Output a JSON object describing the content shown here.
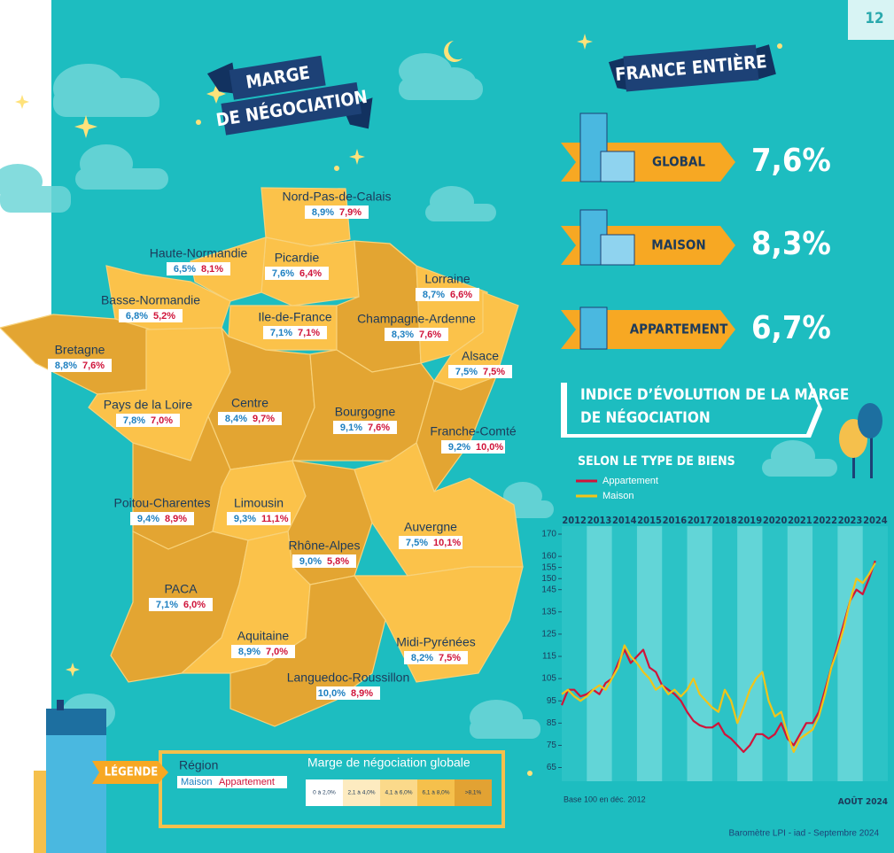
{
  "page_number": "12",
  "map_title": [
    "MARGE",
    "DE NÉGOCIATION"
  ],
  "regions": [
    {
      "name": "Nord-Pas-de-Calais",
      "maison": "8,9%",
      "appartement": "7,9%",
      "color": "#fbc24a"
    },
    {
      "name": "Picardie",
      "maison": "7,6%",
      "appartement": "6,4%",
      "color": "#fbc24a"
    },
    {
      "name": "Haute-Normandie",
      "maison": "6,5%",
      "appartement": "8,1%",
      "color": "#fbc24a"
    },
    {
      "name": "Basse-Normandie",
      "maison": "6,8%",
      "appartement": "5,2%",
      "color": "#fbc24a"
    },
    {
      "name": "Bretagne",
      "maison": "8,8%",
      "appartement": "7,6%",
      "color": "#e3a532"
    },
    {
      "name": "Pays de la Loire",
      "maison": "7,8%",
      "appartement": "7,0%",
      "color": "#fbc24a"
    },
    {
      "name": "Ile-de-France",
      "maison": "7,1%",
      "appartement": "7,1%",
      "color": "#fbc24a"
    },
    {
      "name": "Champagne-Ardenne",
      "maison": "8,3%",
      "appartement": "7,6%",
      "color": "#e3a532"
    },
    {
      "name": "Lorraine",
      "maison": "8,7%",
      "appartement": "6,6%",
      "color": "#fbc24a"
    },
    {
      "name": "Alsace",
      "maison": "7,5%",
      "appartement": "7,5%",
      "color": "#fbc24a"
    },
    {
      "name": "Centre",
      "maison": "8,4%",
      "appartement": "9,7%",
      "color": "#e3a532"
    },
    {
      "name": "Bourgogne",
      "maison": "9,1%",
      "appartement": "7,6%",
      "color": "#e3a532"
    },
    {
      "name": "Franche-Comté",
      "maison": "9,2%",
      "appartement": "10,0%",
      "color": "#e3a532"
    },
    {
      "name": "Poitou-Charentes",
      "maison": "9,4%",
      "appartement": "8,9%",
      "color": "#e3a532"
    },
    {
      "name": "Limousin",
      "maison": "9,3%",
      "appartement": "11,1%",
      "color": "#fbc24a"
    },
    {
      "name": "Auvergne",
      "maison": "7,5%",
      "appartement": "10,1%",
      "color": "#e3a532"
    },
    {
      "name": "Rhône-Alpes",
      "maison": "9,0%",
      "appartement": "5,8%",
      "color": "#fbc24a"
    },
    {
      "name": "PACA",
      "maison": "7,1%",
      "appartement": "6,0%",
      "color": "#fbc24a"
    },
    {
      "name": "Aquitaine",
      "maison": "8,9%",
      "appartement": "7,0%",
      "color": "#e3a532"
    },
    {
      "name": "Midi-Pyrénées",
      "maison": "8,2%",
      "appartement": "7,5%",
      "color": "#fbc24a"
    },
    {
      "name": "Languedoc-Roussillon",
      "maison": "10,0%",
      "appartement": "8,9%",
      "color": "#e3a532"
    }
  ],
  "france": {
    "title": "FRANCE ENTIÈRE",
    "rows": [
      {
        "label": "GLOBAL",
        "value": "7,6%"
      },
      {
        "label": "MAISON",
        "value": "8,3%"
      },
      {
        "label": "APPARTEMENT",
        "value": "6,7%"
      }
    ]
  },
  "legend": {
    "title": "LÉGENDE",
    "region": "Région",
    "maison": "Maison",
    "appartement": "Appartement",
    "scale_title": "Marge de négociation globale",
    "bins": [
      {
        "label": "0 à 2,0%",
        "color": "#ffffff"
      },
      {
        "label": "2,1 à 4,0%",
        "color": "#fdebc0"
      },
      {
        "label": "4,1 à 6,0%",
        "color": "#fbd98a"
      },
      {
        "label": "6,1 à 8,0%",
        "color": "#f5c04c"
      },
      {
        "label": ">8,1%",
        "color": "#e2a233"
      }
    ]
  },
  "chart_data": {
    "type": "line",
    "title": [
      "INDICE D’ÉVOLUTION DE LA MARGE",
      "DE NÉGOCIATION"
    ],
    "subtitle": "SELON LE TYPE DE BIENS",
    "x": [
      2012,
      2012.25,
      2012.5,
      2012.75,
      2013,
      2013.25,
      2013.5,
      2013.75,
      2014,
      2014.25,
      2014.5,
      2014.75,
      2015,
      2015.25,
      2015.5,
      2015.75,
      2016,
      2016.25,
      2016.5,
      2016.75,
      2017,
      2017.25,
      2017.5,
      2017.75,
      2018,
      2018.25,
      2018.5,
      2018.75,
      2019,
      2019.25,
      2019.5,
      2019.75,
      2020,
      2020.25,
      2020.5,
      2020.75,
      2021,
      2021.25,
      2021.5,
      2021.75,
      2022,
      2022.25,
      2022.5,
      2022.75,
      2023,
      2023.25,
      2023.5,
      2023.75,
      2024,
      2024.25,
      2024.5
    ],
    "series": [
      {
        "name": "Appartement",
        "color": "#d0143a",
        "values": [
          93,
          100,
          100,
          97,
          98,
          100,
          98,
          103,
          105,
          112,
          118,
          112,
          115,
          118,
          110,
          108,
          102,
          100,
          98,
          95,
          90,
          86,
          84,
          83,
          83,
          85,
          80,
          78,
          75,
          72,
          75,
          80,
          80,
          78,
          80,
          85,
          78,
          75,
          80,
          85,
          85,
          90,
          100,
          110,
          120,
          130,
          140,
          145,
          143,
          150,
          158
        ]
      },
      {
        "name": "Maison",
        "color": "#f2c418",
        "values": [
          98,
          100,
          97,
          95,
          97,
          100,
          102,
          100,
          105,
          110,
          120,
          115,
          112,
          108,
          105,
          100,
          102,
          98,
          100,
          97,
          100,
          105,
          98,
          95,
          92,
          90,
          100,
          95,
          85,
          92,
          100,
          105,
          108,
          95,
          88,
          90,
          80,
          72,
          78,
          80,
          82,
          88,
          98,
          110,
          118,
          128,
          140,
          150,
          148,
          152,
          157
        ]
      }
    ],
    "xlim": [
      2012,
      2025
    ],
    "xticks": [
      {
        "value": 2012.5,
        "label": "2012"
      },
      {
        "value": 2013.5,
        "label": "2013"
      },
      {
        "value": 2014.5,
        "label": "2014"
      },
      {
        "value": 2015.5,
        "label": "2015"
      },
      {
        "value": 2016.5,
        "label": "2016"
      },
      {
        "value": 2017.5,
        "label": "2017"
      },
      {
        "value": 2018.5,
        "label": "2018"
      },
      {
        "value": 2019.5,
        "label": "2019"
      },
      {
        "value": 2020.5,
        "label": "2020"
      },
      {
        "value": 2021.5,
        "label": "2021"
      },
      {
        "value": 2022.5,
        "label": "2022"
      },
      {
        "value": 2023.5,
        "label": "2023"
      },
      {
        "value": 2024.5,
        "label": "2024"
      }
    ],
    "ylim": [
      62,
      172
    ],
    "yticks": [
      170,
      160,
      155,
      150,
      145,
      135,
      125,
      115,
      105,
      95,
      85,
      75,
      65
    ],
    "grid": false,
    "annotations": [
      "Base 100 en déc. 2012",
      "AOÛT 2024"
    ]
  },
  "footer": "Baromètre LPI - iad - Septembre 2024"
}
